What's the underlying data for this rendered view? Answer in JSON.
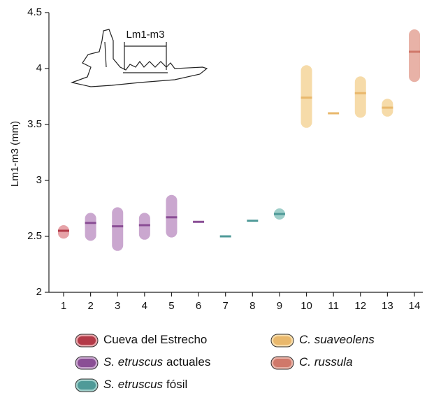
{
  "chart_data": {
    "type": "range",
    "ylabel": "Lm1-m3 (mm)",
    "annotation": "Lm1-m3",
    "categories": [
      "1",
      "2",
      "3",
      "4",
      "5",
      "6",
      "7",
      "8",
      "9",
      "10",
      "11",
      "12",
      "13",
      "14"
    ],
    "ylim": [
      2,
      4.5
    ],
    "yticks": [
      2,
      2.5,
      3,
      3.5,
      4,
      4.5
    ],
    "series": [
      {
        "name": "Cueva del Estrecho",
        "color": "#b33a48",
        "range_color": "#e6a3a8",
        "values": [
          2.55,
          null,
          null,
          null,
          null,
          null,
          null,
          null,
          null,
          null,
          null,
          null,
          null,
          null
        ],
        "mins": [
          2.48,
          null,
          null,
          null,
          null,
          null,
          null,
          null,
          null,
          null,
          null,
          null,
          null,
          null
        ],
        "maxs": [
          2.6,
          null,
          null,
          null,
          null,
          null,
          null,
          null,
          null,
          null,
          null,
          null,
          null,
          null
        ]
      },
      {
        "name_italic": "S. etruscus",
        "name": "actuales",
        "color": "#8a4e95",
        "range_color": "#caa7cf",
        "values": [
          null,
          2.62,
          2.59,
          2.6,
          2.67,
          2.63,
          null,
          null,
          null,
          null,
          null,
          null,
          null,
          null
        ],
        "mins": [
          null,
          2.46,
          2.37,
          2.47,
          2.49,
          null,
          null,
          null,
          null,
          null,
          null,
          null,
          null,
          null
        ],
        "maxs": [
          null,
          2.71,
          2.76,
          2.71,
          2.87,
          null,
          null,
          null,
          null,
          null,
          null,
          null,
          null,
          null
        ]
      },
      {
        "name_italic": "S. etruscus",
        "name": "fósil",
        "color": "#4f9a98",
        "range_color": "#9fcfca",
        "values": [
          null,
          null,
          null,
          null,
          null,
          null,
          2.5,
          2.64,
          2.7,
          null,
          null,
          null,
          null,
          null
        ],
        "mins": [
          null,
          null,
          null,
          null,
          null,
          null,
          null,
          null,
          2.65,
          null,
          null,
          null,
          null,
          null
        ],
        "maxs": [
          null,
          null,
          null,
          null,
          null,
          null,
          null,
          null,
          2.75,
          null,
          null,
          null,
          null,
          null
        ]
      },
      {
        "name_italic": "C. suaveolens",
        "color": "#e9b86c",
        "range_color": "#f6dba9",
        "values": [
          null,
          null,
          null,
          null,
          null,
          null,
          null,
          null,
          null,
          3.74,
          3.6,
          3.78,
          3.65,
          null
        ],
        "mins": [
          null,
          null,
          null,
          null,
          null,
          null,
          null,
          null,
          null,
          3.47,
          null,
          3.56,
          3.57,
          null
        ],
        "maxs": [
          null,
          null,
          null,
          null,
          null,
          null,
          null,
          null,
          null,
          4.03,
          null,
          3.93,
          3.73,
          null
        ]
      },
      {
        "name_italic": "C. russula",
        "color": "#d0786a",
        "range_color": "#e8b2a7",
        "values": [
          null,
          null,
          null,
          null,
          null,
          null,
          null,
          null,
          null,
          null,
          null,
          null,
          null,
          4.15
        ],
        "mins": [
          null,
          null,
          null,
          null,
          null,
          null,
          null,
          null,
          null,
          null,
          null,
          null,
          null,
          3.88
        ],
        "maxs": [
          null,
          null,
          null,
          null,
          null,
          null,
          null,
          null,
          null,
          null,
          null,
          null,
          null,
          4.35
        ]
      }
    ]
  }
}
